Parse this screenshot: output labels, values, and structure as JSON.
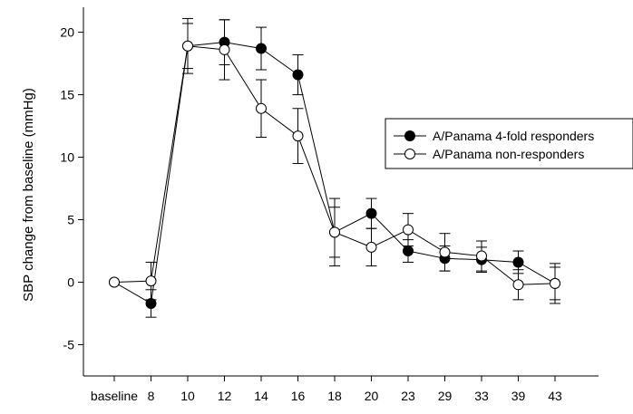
{
  "chart_data": {
    "type": "line",
    "categories": [
      "baseline",
      "8",
      "10",
      "12",
      "14",
      "16",
      "18",
      "20",
      "23",
      "29",
      "33",
      "39",
      "43"
    ],
    "ylabel": "SBP change from baseline (mmHg)",
    "xlabel": "",
    "ylim": [
      -7.5,
      22
    ],
    "yticks": [
      -5,
      0,
      5,
      10,
      15,
      20
    ],
    "grid": false,
    "legend_position": "right",
    "series": [
      {
        "name": "A/Panama 4-fold responders",
        "marker": "filled-circle",
        "color": "#000000",
        "values": [
          0,
          -1.7,
          18.9,
          19.2,
          18.7,
          16.6,
          4.0,
          5.5,
          2.5,
          1.9,
          1.8,
          1.6,
          -0.1
        ],
        "err": [
          0,
          1.1,
          1.8,
          1.8,
          1.7,
          1.6,
          2.7,
          1.2,
          0.9,
          1.0,
          1.0,
          0.9,
          1.6
        ]
      },
      {
        "name": "A/Panama non-responders",
        "marker": "open-circle",
        "color": "#000000",
        "values": [
          0,
          0.1,
          18.9,
          18.6,
          13.9,
          11.7,
          4.0,
          2.8,
          4.2,
          2.4,
          2.1,
          -0.2,
          -0.1
        ],
        "err": [
          0,
          1.5,
          2.2,
          2.4,
          2.3,
          2.2,
          2.0,
          1.5,
          1.3,
          1.5,
          1.2,
          1.2,
          1.3
        ]
      }
    ]
  }
}
